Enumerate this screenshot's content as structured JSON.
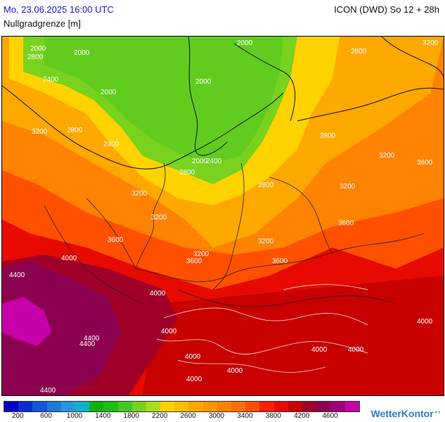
{
  "header": {
    "datetime": "Mo, 23.06.2025 16:00 UTC",
    "model": "ICON (DWD) So 12 + 28h",
    "parameter": "Nullgradgrenze [m]"
  },
  "map": {
    "contour_labels": [
      "2000",
      "2000",
      "2000",
      "2800",
      "2400",
      "2000",
      "2000",
      "2000",
      "2800",
      "3200",
      "3200",
      "2800",
      "2400",
      "2400",
      "2800",
      "3200",
      "3200",
      "2800",
      "3200",
      "2800",
      "3200",
      "3600",
      "3600",
      "3200",
      "3200",
      "3600",
      "3600",
      "3600",
      "4000",
      "4400",
      "4000",
      "4000",
      "4400",
      "4000",
      "4000",
      "4000",
      "4000",
      "4000",
      "4000",
      "4400",
      "4400"
    ]
  },
  "legend": {
    "colors": [
      "#0000c8",
      "#0a2dd2",
      "#1455d7",
      "#1e78dc",
      "#2896dc",
      "#10b0c8",
      "#10b010",
      "#18c018",
      "#46c81e",
      "#78d21e",
      "#aadc1e",
      "#ffd200",
      "#ffbe00",
      "#ffa800",
      "#ff9600",
      "#ff8200",
      "#ff6e00",
      "#ff5000",
      "#ff1e00",
      "#e60a00",
      "#c80000",
      "#a00028",
      "#8c0050",
      "#a00078",
      "#c800aa"
    ],
    "ticks": [
      "200",
      "600",
      "1000",
      "1400",
      "1800",
      "2200",
      "2600",
      "3000",
      "3400",
      "3800",
      "4200",
      "4600"
    ]
  },
  "branding": {
    "name": "WetterKontor",
    "logo_icon": "wind-icon"
  }
}
